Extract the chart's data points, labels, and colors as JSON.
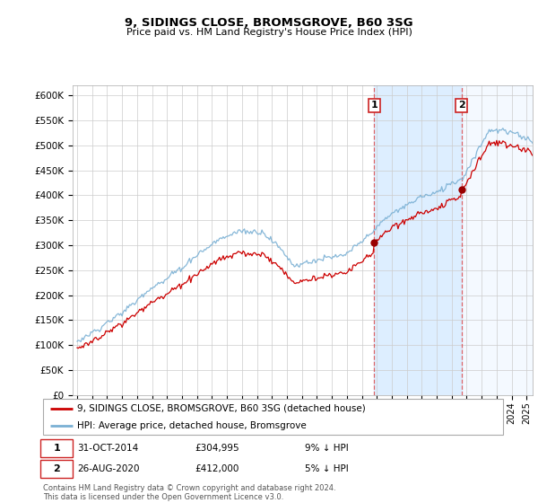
{
  "title": "9, SIDINGS CLOSE, BROMSGROVE, B60 3SG",
  "subtitle": "Price paid vs. HM Land Registry's House Price Index (HPI)",
  "ylabel_ticks": [
    "£0",
    "£50K",
    "£100K",
    "£150K",
    "£200K",
    "£250K",
    "£300K",
    "£350K",
    "£400K",
    "£450K",
    "£500K",
    "£550K",
    "£600K"
  ],
  "ytick_vals": [
    0,
    50000,
    100000,
    150000,
    200000,
    250000,
    300000,
    350000,
    400000,
    450000,
    500000,
    550000,
    600000
  ],
  "ylim": [
    0,
    620000
  ],
  "xlim_start": 1994.7,
  "xlim_end": 2025.4,
  "sale1_date": "31-OCT-2014",
  "sale1_price": 304995,
  "sale1_x": 2014.83,
  "sale2_date": "26-AUG-2020",
  "sale2_price": 412000,
  "sale2_x": 2020.65,
  "legend_line1": "9, SIDINGS CLOSE, BROMSGROVE, B60 3SG (detached house)",
  "legend_line2": "HPI: Average price, detached house, Bromsgrove",
  "footer": "Contains HM Land Registry data © Crown copyright and database right 2024.\nThis data is licensed under the Open Government Licence v3.0.",
  "red_color": "#cc0000",
  "blue_color": "#7ab0d4",
  "shade_color": "#ddeeff",
  "grid_color": "#cccccc"
}
